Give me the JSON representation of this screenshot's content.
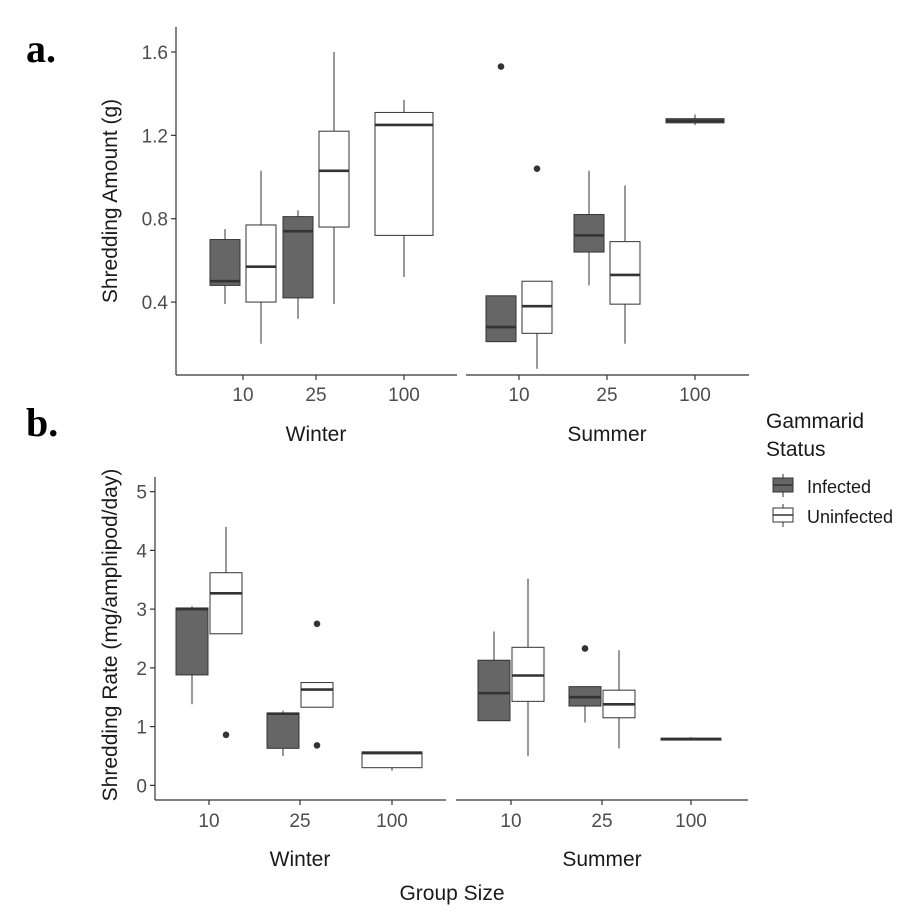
{
  "figure": {
    "panel_labels": [
      "a.",
      "b."
    ],
    "x_title": "Group Size",
    "legend": {
      "title_lines": [
        "Gammarid",
        "Status"
      ],
      "items": [
        {
          "label": "Infected",
          "fill": "#666666"
        },
        {
          "label": "Uninfected",
          "fill": "#ffffff"
        }
      ]
    }
  },
  "chart_data": [
    {
      "type": "box",
      "panel": "a.",
      "ylabel": "Shredding Amount (g)",
      "ylim": [
        0.05,
        1.72
      ],
      "yticks": [
        0.4,
        0.8,
        1.2,
        1.6
      ],
      "ytick_labels": [
        "0.4",
        "0.8",
        "1.2",
        "1.6"
      ],
      "facets": [
        "Winter",
        "Summer"
      ],
      "categories": [
        "10",
        "25",
        "100"
      ],
      "series_names": [
        "Infected",
        "Uninfected"
      ],
      "boxes": [
        {
          "facet": "Winter",
          "category": "10",
          "status": "Infected",
          "whisker_low": 0.39,
          "q1": 0.48,
          "median": 0.5,
          "q3": 0.7,
          "whisker_high": 0.75,
          "outliers": []
        },
        {
          "facet": "Winter",
          "category": "10",
          "status": "Uninfected",
          "whisker_low": 0.2,
          "q1": 0.4,
          "median": 0.57,
          "q3": 0.77,
          "whisker_high": 1.03,
          "outliers": []
        },
        {
          "facet": "Winter",
          "category": "25",
          "status": "Infected",
          "whisker_low": 0.32,
          "q1": 0.42,
          "median": 0.74,
          "q3": 0.81,
          "whisker_high": 0.84,
          "outliers": []
        },
        {
          "facet": "Winter",
          "category": "25",
          "status": "Uninfected",
          "whisker_low": 0.39,
          "q1": 0.76,
          "median": 1.03,
          "q3": 1.22,
          "whisker_high": 1.6,
          "outliers": []
        },
        {
          "facet": "Winter",
          "category": "100",
          "status": "Uninfected",
          "whisker_low": 0.52,
          "q1": 0.72,
          "median": 1.25,
          "q3": 1.31,
          "whisker_high": 1.37,
          "outliers": []
        },
        {
          "facet": "Summer",
          "category": "10",
          "status": "Infected",
          "whisker_low": 0.21,
          "q1": 0.21,
          "median": 0.28,
          "q3": 0.43,
          "whisker_high": 0.43,
          "outliers": [
            1.53
          ]
        },
        {
          "facet": "Summer",
          "category": "10",
          "status": "Uninfected",
          "whisker_low": 0.08,
          "q1": 0.25,
          "median": 0.38,
          "q3": 0.5,
          "whisker_high": 0.5,
          "outliers": [
            1.04
          ]
        },
        {
          "facet": "Summer",
          "category": "25",
          "status": "Infected",
          "whisker_low": 0.48,
          "q1": 0.64,
          "median": 0.72,
          "q3": 0.82,
          "whisker_high": 1.03,
          "outliers": []
        },
        {
          "facet": "Summer",
          "category": "25",
          "status": "Uninfected",
          "whisker_low": 0.2,
          "q1": 0.39,
          "median": 0.53,
          "q3": 0.69,
          "whisker_high": 0.96,
          "outliers": []
        },
        {
          "facet": "Summer",
          "category": "100",
          "status": "Infected",
          "whisker_low": 1.25,
          "q1": 1.26,
          "median": 1.27,
          "q3": 1.28,
          "whisker_high": 1.3,
          "outliers": []
        }
      ]
    },
    {
      "type": "box",
      "panel": "b.",
      "ylabel": "Shredding Rate (mg/amphipod/day)",
      "ylim": [
        -0.25,
        5.25
      ],
      "yticks": [
        0,
        1,
        2,
        3,
        4,
        5
      ],
      "ytick_labels": [
        "0",
        "1",
        "2",
        "3",
        "4",
        "5"
      ],
      "facets": [
        "Winter",
        "Summer"
      ],
      "categories": [
        "10",
        "25",
        "100"
      ],
      "series_names": [
        "Infected",
        "Uninfected"
      ],
      "boxes": [
        {
          "facet": "Winter",
          "category": "10",
          "status": "Infected",
          "whisker_low": 1.38,
          "q1": 1.88,
          "median": 3.0,
          "q3": 3.02,
          "whisker_high": 3.05,
          "outliers": []
        },
        {
          "facet": "Winter",
          "category": "10",
          "status": "Uninfected",
          "whisker_low": 2.58,
          "q1": 2.58,
          "median": 3.27,
          "q3": 3.62,
          "whisker_high": 4.4,
          "outliers": [
            0.86
          ]
        },
        {
          "facet": "Winter",
          "category": "25",
          "status": "Infected",
          "whisker_low": 0.5,
          "q1": 0.63,
          "median": 1.22,
          "q3": 1.23,
          "whisker_high": 1.27,
          "outliers": []
        },
        {
          "facet": "Winter",
          "category": "25",
          "status": "Uninfected",
          "whisker_low": 1.33,
          "q1": 1.33,
          "median": 1.63,
          "q3": 1.75,
          "whisker_high": 1.75,
          "outliers": [
            2.75,
            0.68
          ]
        },
        {
          "facet": "Winter",
          "category": "100",
          "status": "Uninfected",
          "whisker_low": 0.25,
          "q1": 0.3,
          "median": 0.55,
          "q3": 0.57,
          "whisker_high": 0.57,
          "outliers": []
        },
        {
          "facet": "Summer",
          "category": "10",
          "status": "Infected",
          "whisker_low": 1.1,
          "q1": 1.1,
          "median": 1.57,
          "q3": 2.13,
          "whisker_high": 2.62,
          "outliers": []
        },
        {
          "facet": "Summer",
          "category": "10",
          "status": "Uninfected",
          "whisker_low": 0.5,
          "q1": 1.43,
          "median": 1.87,
          "q3": 2.35,
          "whisker_high": 3.52,
          "outliers": []
        },
        {
          "facet": "Summer",
          "category": "25",
          "status": "Infected",
          "whisker_low": 1.07,
          "q1": 1.35,
          "median": 1.5,
          "q3": 1.68,
          "whisker_high": 1.68,
          "outliers": [
            2.33
          ]
        },
        {
          "facet": "Summer",
          "category": "25",
          "status": "Uninfected",
          "whisker_low": 0.63,
          "q1": 1.15,
          "median": 1.38,
          "q3": 1.62,
          "whisker_high": 2.3,
          "outliers": []
        },
        {
          "facet": "Summer",
          "category": "100",
          "status": "Infected",
          "whisker_low": 0.77,
          "q1": 0.77,
          "median": 0.79,
          "q3": 0.8,
          "whisker_high": 0.82,
          "outliers": []
        }
      ]
    }
  ]
}
